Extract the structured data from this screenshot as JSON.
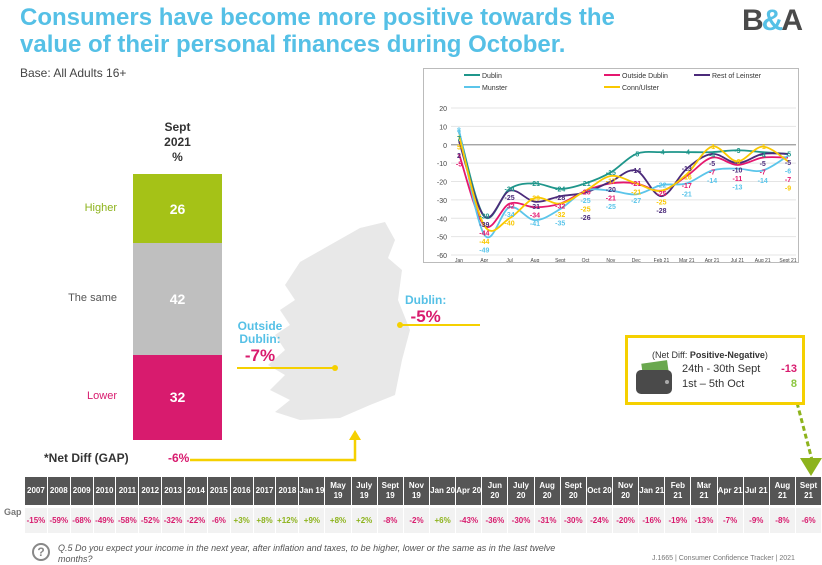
{
  "title": "Consumers have become more positive towards the value of their personal finances during October.",
  "logo": "B&A",
  "base": "Base: All Adults 16+",
  "stacked_bar": {
    "header": [
      "Sept",
      "2021",
      "%"
    ],
    "segments": [
      {
        "label": "Higher",
        "value": 26,
        "color": "#a5c217"
      },
      {
        "label": "The same",
        "value": 42,
        "color": "#bfbfbf"
      },
      {
        "label": "Lower",
        "value": 32,
        "color": "#d81b6e"
      }
    ],
    "net_diff_label": "*Net Diff (GAP)",
    "net_diff_value": "-6%"
  },
  "regions": {
    "dublin_label": "Dublin:",
    "dublin_value": "-5%",
    "outside_label": "Outside Dublin:",
    "outside_value": "-7%"
  },
  "wallet_box": {
    "title_prefix": "(Net Diff: ",
    "title_bold": "Positive-Negative",
    "title_suffix": ")",
    "rows": [
      {
        "label": "24th - 30th Sept",
        "value": "-13",
        "color": "#d81b6e"
      },
      {
        "label": "1st – 5th Oct",
        "value": "8",
        "color": "#8cc63f"
      }
    ]
  },
  "chart_data": {
    "type": "line",
    "categories": [
      "Jan",
      "Apr",
      "Jul",
      "Aug",
      "Sept",
      "Oct",
      "Nov",
      "Dec",
      "Feb 21",
      "Mar 21",
      "Apr 21",
      "Jul 21",
      "Aug 21",
      "Sept 21"
    ],
    "ylim": [
      -60,
      20
    ],
    "yticks": [
      20,
      10,
      0,
      -10,
      -20,
      -30,
      -40,
      -50,
      -60
    ],
    "grid": true,
    "legend": "top",
    "series": [
      {
        "name": "Dublin",
        "color": "#1f968b",
        "values": [
          7,
          -39,
          -24,
          -21,
          -24,
          -21,
          -15,
          -5,
          -4,
          -4,
          -4,
          -3,
          -4,
          -5
        ]
      },
      {
        "name": "Outside Dublin",
        "color": "#e5176f",
        "values": [
          -5,
          -44,
          -32,
          -34,
          -32,
          -25,
          -21,
          -21,
          -25,
          -17,
          -7,
          -11,
          -7,
          -7
        ]
      },
      {
        "name": "Rest of Leinster",
        "color": "#4b2a7a",
        "values": [
          2,
          -39,
          -25,
          -31,
          -28,
          -26,
          -20,
          -14,
          -28,
          -13,
          -5,
          -10,
          -5,
          -5
        ]
      },
      {
        "name": "Munster",
        "color": "#5bc5ea",
        "values": [
          8,
          -49,
          -34,
          -41,
          -35,
          -25,
          -25,
          -27,
          -22,
          -21,
          -14,
          -13,
          -14,
          -6
        ]
      },
      {
        "name": "Conn/Ulster",
        "color": "#f9c800",
        "values": [
          5,
          -44,
          -40,
          -29,
          -32,
          -25,
          -17,
          -21,
          -25,
          -16,
          -1,
          -9,
          -1,
          -9
        ]
      }
    ]
  },
  "gap_table": {
    "row_label": "Gap",
    "columns": [
      "2007",
      "2008",
      "2009",
      "2010",
      "2011",
      "2012",
      "2013",
      "2014",
      "2015",
      "2016",
      "2017",
      "2018",
      "Jan 19",
      "May 19",
      "July 19",
      "Sept 19",
      "Nov 19",
      "Jan 20",
      "Apr 20",
      "Jun 20",
      "July 20",
      "Aug 20",
      "Sept 20",
      "Oct 20",
      "Nov 20",
      "Jan 21",
      "Feb 21",
      "Mar 21",
      "Apr 21",
      "Jul 21",
      "Aug 21",
      "Sept 21"
    ],
    "values": [
      "-15%",
      "-59%",
      "-68%",
      "-49%",
      "-58%",
      "-52%",
      "-32%",
      "-22%",
      "-6%",
      "+3%",
      "+8%",
      "+12%",
      "+9%",
      "+8%",
      "+2%",
      "-8%",
      "-2%",
      "+6%",
      "-43%",
      "-36%",
      "-30%",
      "-31%",
      "-30%",
      "-24%",
      "-20%",
      "-16%",
      "-19%",
      "-13%",
      "-7%",
      "-9%",
      "-8%",
      "-6%"
    ]
  },
  "question": "Q.5  Do you expect your income in the next year, after inflation and taxes, to be higher, lower or the same as in the last twelve months?",
  "footer": "J.1665  | Consumer Confidence Tracker |  2021"
}
